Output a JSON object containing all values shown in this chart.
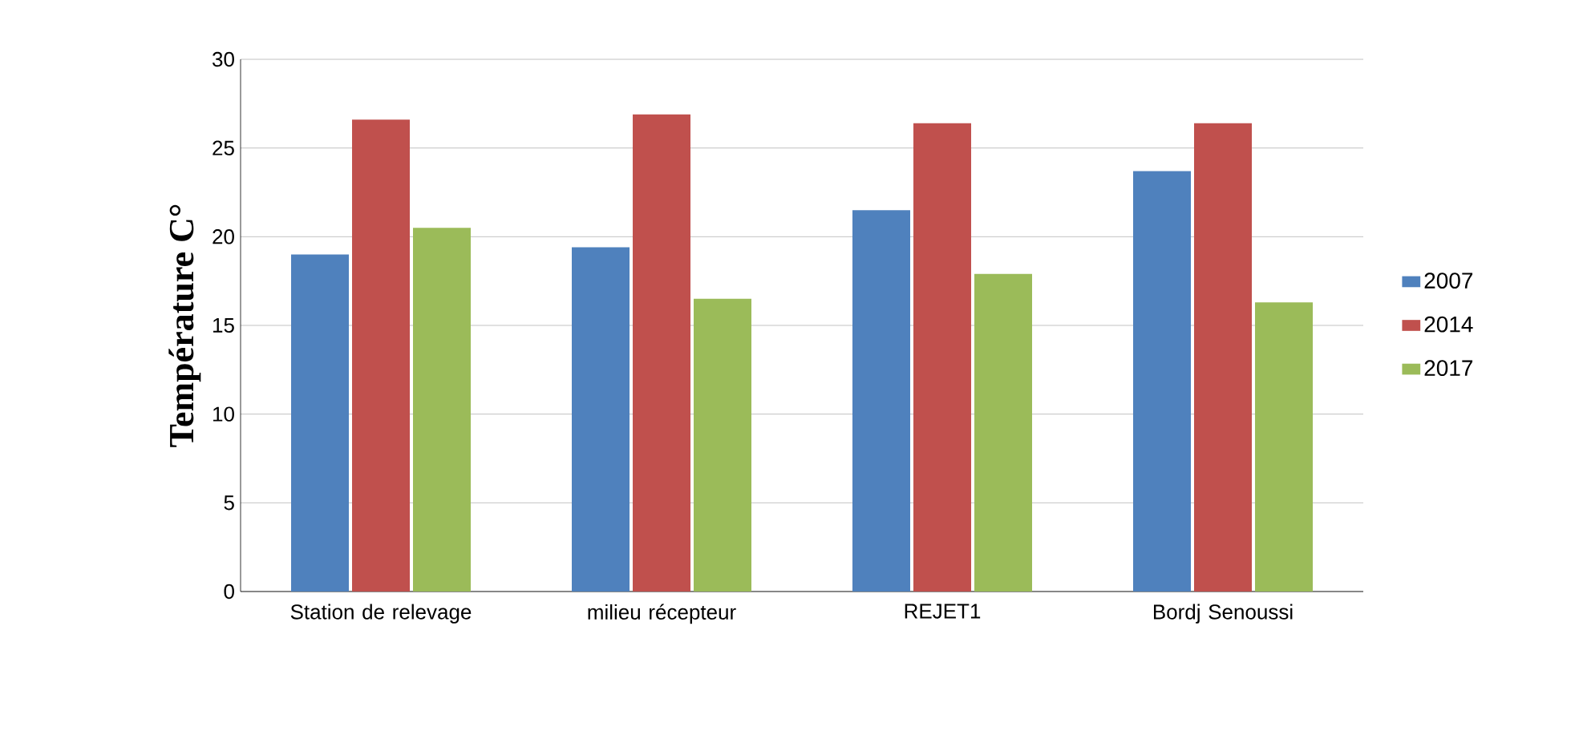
{
  "chart_data": {
    "type": "bar",
    "ylabel": "Température C°",
    "categories": [
      "Station de relevage",
      "milieu récepteur",
      "REJET1",
      "Bordj Senoussi"
    ],
    "series": [
      {
        "name": "2007",
        "color": "#4f81bd",
        "values": [
          19.0,
          19.4,
          21.5,
          23.7
        ]
      },
      {
        "name": "2014",
        "color": "#c0504d",
        "values": [
          26.6,
          26.9,
          26.4,
          26.4
        ]
      },
      {
        "name": "2017",
        "color": "#9bbb59",
        "values": [
          20.5,
          16.5,
          17.9,
          16.3
        ]
      }
    ],
    "ylim": [
      0,
      30
    ],
    "yticks": [
      0,
      5,
      10,
      15,
      20,
      25,
      30
    ],
    "grid": "y",
    "legend": "right"
  }
}
